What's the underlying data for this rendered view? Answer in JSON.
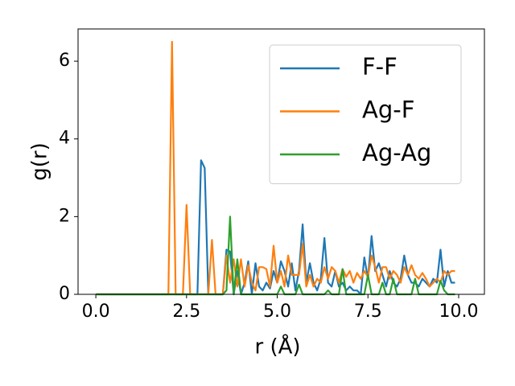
{
  "chart_data": {
    "type": "line",
    "xlabel": "r (Å)",
    "ylabel": "g(r)",
    "x": [
      0,
      0.1,
      0.2,
      0.3,
      0.4,
      0.5,
      0.6,
      0.7,
      0.8,
      0.9,
      1.0,
      1.1,
      1.2,
      1.3,
      1.4,
      1.5,
      1.6,
      1.7,
      1.8,
      1.9,
      2.0,
      2.1,
      2.2,
      2.3,
      2.4,
      2.5,
      2.6,
      2.7,
      2.8,
      2.9,
      3.0,
      3.1,
      3.2,
      3.3,
      3.4,
      3.5,
      3.6,
      3.7,
      3.8,
      3.9,
      4.0,
      4.1,
      4.2,
      4.3,
      4.4,
      4.5,
      4.6,
      4.7,
      4.8,
      4.9,
      5.0,
      5.1,
      5.2,
      5.3,
      5.4,
      5.5,
      5.6,
      5.7,
      5.8,
      5.9,
      6.0,
      6.1,
      6.2,
      6.3,
      6.4,
      6.5,
      6.6,
      6.7,
      6.8,
      6.9,
      7.0,
      7.1,
      7.2,
      7.3,
      7.4,
      7.5,
      7.6,
      7.7,
      7.8,
      7.9,
      8.0,
      8.1,
      8.2,
      8.3,
      8.4,
      8.5,
      8.6,
      8.7,
      8.8,
      8.9,
      9.0,
      9.1,
      9.2,
      9.3,
      9.4,
      9.5,
      9.6,
      9.7,
      9.8,
      9.9
    ],
    "series": [
      {
        "name": "F-F",
        "color": "#1f77b4",
        "values": [
          0,
          0,
          0,
          0,
          0,
          0,
          0,
          0,
          0,
          0,
          0,
          0,
          0,
          0,
          0,
          0,
          0,
          0,
          0,
          0,
          0,
          0,
          0,
          0,
          0,
          0,
          0,
          0,
          0,
          3.45,
          3.25,
          0,
          0,
          0,
          0,
          0,
          1.15,
          1.1,
          0,
          0.6,
          0,
          0.3,
          0.85,
          0,
          0.8,
          0.2,
          0.1,
          0.3,
          0.15,
          0.6,
          0.3,
          0.85,
          0.6,
          0.2,
          0.8,
          0.1,
          0.6,
          1.8,
          0.3,
          0.8,
          0.3,
          0.1,
          0.4,
          1.45,
          0.3,
          0.2,
          0.6,
          0.2,
          0.3,
          0.1,
          0.2,
          0.1,
          0.1,
          0,
          0.95,
          0.4,
          1.5,
          0.6,
          0.8,
          0.5,
          0.2,
          0.6,
          0.3,
          0.2,
          0.4,
          1.0,
          0.5,
          0.3,
          0.3,
          0.2,
          0.4,
          0.3,
          0.2,
          0.4,
          0.3,
          1.15,
          0.2,
          0.6,
          0.3,
          0.3
        ]
      },
      {
        "name": "Ag-F",
        "color": "#ff7f0e",
        "values": [
          0,
          0,
          0,
          0,
          0,
          0,
          0,
          0,
          0,
          0,
          0,
          0,
          0,
          0,
          0,
          0,
          0,
          0,
          0,
          0,
          0,
          6.5,
          0,
          0,
          0,
          2.3,
          0,
          0,
          0,
          0,
          0,
          0,
          1.4,
          0,
          0,
          0,
          1.0,
          0.3,
          0.9,
          0.2,
          0.9,
          0.2,
          0.75,
          0.3,
          0.1,
          0.7,
          0.7,
          0.65,
          0.2,
          1.25,
          0.3,
          0.6,
          0.2,
          1.0,
          0.5,
          0.5,
          0.5,
          1.3,
          0.2,
          0.5,
          0.2,
          0.4,
          0.3,
          0.7,
          0.4,
          0.7,
          0.6,
          0.3,
          0.65,
          0.45,
          0.6,
          0.3,
          0.55,
          0.4,
          0.6,
          0.45,
          1.0,
          0.7,
          0.3,
          0.7,
          0.7,
          0.4,
          0.6,
          0.5,
          0.3,
          0.7,
          0.5,
          0.75,
          0.5,
          0.4,
          0.55,
          0.4,
          0.2,
          0.3,
          0.4,
          0.3,
          0.6,
          0.5,
          0.6,
          0.6
        ]
      },
      {
        "name": "Ag-Ag",
        "color": "#2ca02c",
        "values": [
          0,
          0,
          0,
          0,
          0,
          0,
          0,
          0,
          0,
          0,
          0,
          0,
          0,
          0,
          0,
          0,
          0,
          0,
          0,
          0,
          0,
          0,
          0,
          0,
          0,
          0,
          0,
          0,
          0,
          0,
          0,
          0,
          0,
          0,
          0,
          0,
          0.1,
          2.0,
          0,
          0.9,
          0,
          0,
          0,
          0,
          0,
          0,
          0,
          0,
          0,
          0,
          0,
          0.2,
          0,
          0,
          0,
          0,
          0.25,
          0,
          0,
          0,
          0,
          0,
          0,
          0,
          0.1,
          0,
          0,
          0,
          0.65,
          0,
          0,
          0,
          0,
          0,
          0,
          0.5,
          0,
          0,
          0,
          0.3,
          0,
          0,
          0.4,
          0,
          0,
          0,
          0,
          0,
          0.4,
          0,
          0,
          0,
          0,
          0,
          0,
          0.35,
          0.1,
          0,
          0,
          0
        ]
      }
    ],
    "xlim": [
      -0.49,
      10.71
    ],
    "ylim": [
      0,
      6.83
    ],
    "xticks": [
      {
        "value": 0,
        "label": "0.0"
      },
      {
        "value": 2.5,
        "label": "2.5"
      },
      {
        "value": 5,
        "label": "5.0"
      },
      {
        "value": 7.5,
        "label": "7.5"
      },
      {
        "value": 10,
        "label": "10.0"
      }
    ],
    "yticks": [
      0,
      2,
      4,
      6
    ],
    "legend": "upper right",
    "grid": false
  }
}
